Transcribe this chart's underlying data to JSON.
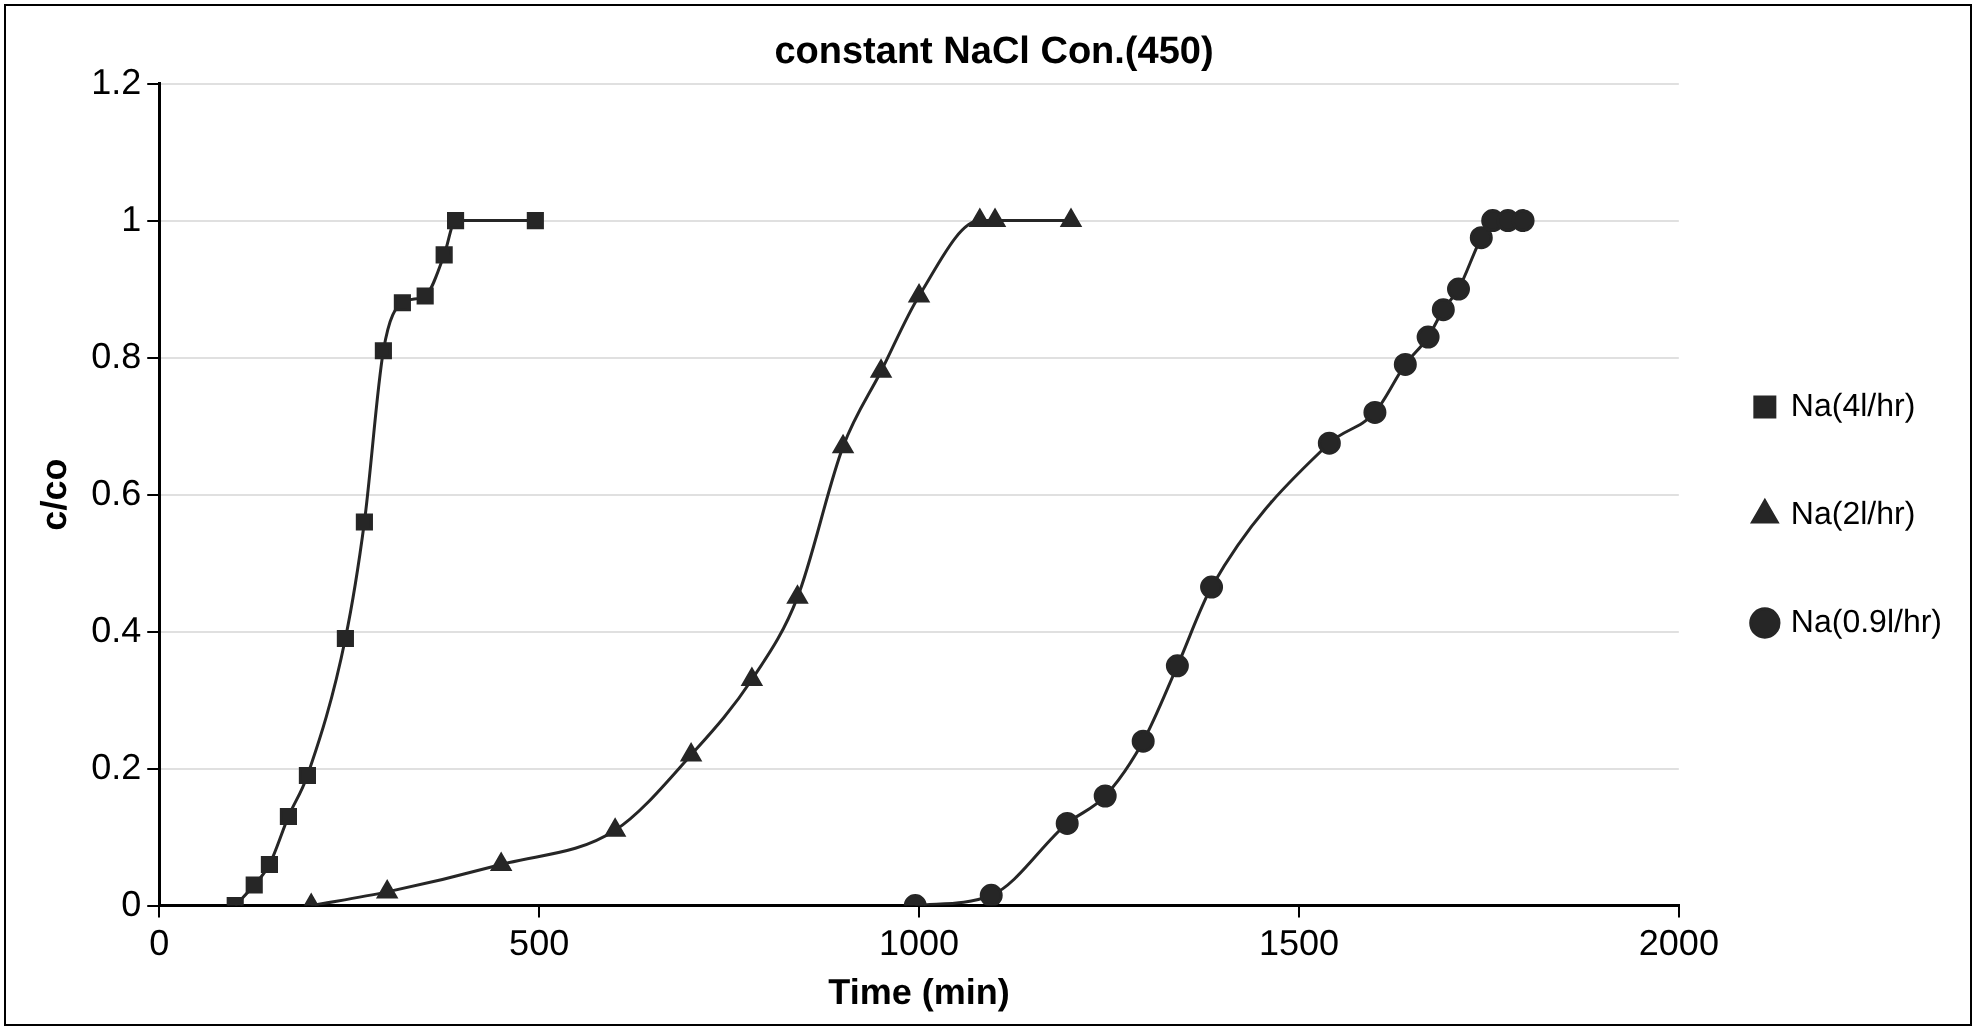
{
  "chart_data": {
    "type": "line",
    "title": "constant NaCl Con.(450)",
    "xlabel": "Time (min)",
    "ylabel": "c/co",
    "xlim": [
      0,
      2000
    ],
    "xticks": [
      0,
      500,
      1000,
      1500,
      2000
    ],
    "ylim": [
      0,
      1.2
    ],
    "yticks": [
      0,
      0.2,
      0.4,
      0.6,
      0.8,
      1,
      1.2
    ],
    "grid": "y",
    "legend": "right",
    "line_style": "solid",
    "series": [
      {
        "name": "Na(4l/hr)",
        "color": "#262626",
        "marker": "square",
        "x": [
          100,
          125,
          145,
          170,
          195,
          245,
          270,
          295,
          320,
          350,
          375,
          390,
          495
        ],
        "values": [
          0,
          0.03,
          0.06,
          0.13,
          0.19,
          0.39,
          0.56,
          0.81,
          0.88,
          0.89,
          0.95,
          1,
          1
        ]
      },
      {
        "name": "Na(2l/hr)",
        "color": "#262626",
        "marker": "triangle",
        "x": [
          200,
          300,
          450,
          600,
          700,
          780,
          840,
          900,
          950,
          1000,
          1080,
          1100,
          1200
        ],
        "values": [
          0,
          0.02,
          0.06,
          0.11,
          0.22,
          0.33,
          0.45,
          0.67,
          0.78,
          0.89,
          1,
          1,
          1
        ]
      },
      {
        "name": "Na(0.9l/hr)",
        "color": "#262626",
        "marker": "circle",
        "x": [
          995,
          1095,
          1195,
          1245,
          1295,
          1340,
          1385,
          1540,
          1600,
          1640,
          1670,
          1690,
          1710,
          1740,
          1755,
          1775,
          1795
        ],
        "values": [
          0,
          0.015,
          0.12,
          0.16,
          0.24,
          0.35,
          0.465,
          0.675,
          0.72,
          0.79,
          0.83,
          0.87,
          0.9,
          0.975,
          1,
          1,
          1
        ]
      }
    ]
  }
}
